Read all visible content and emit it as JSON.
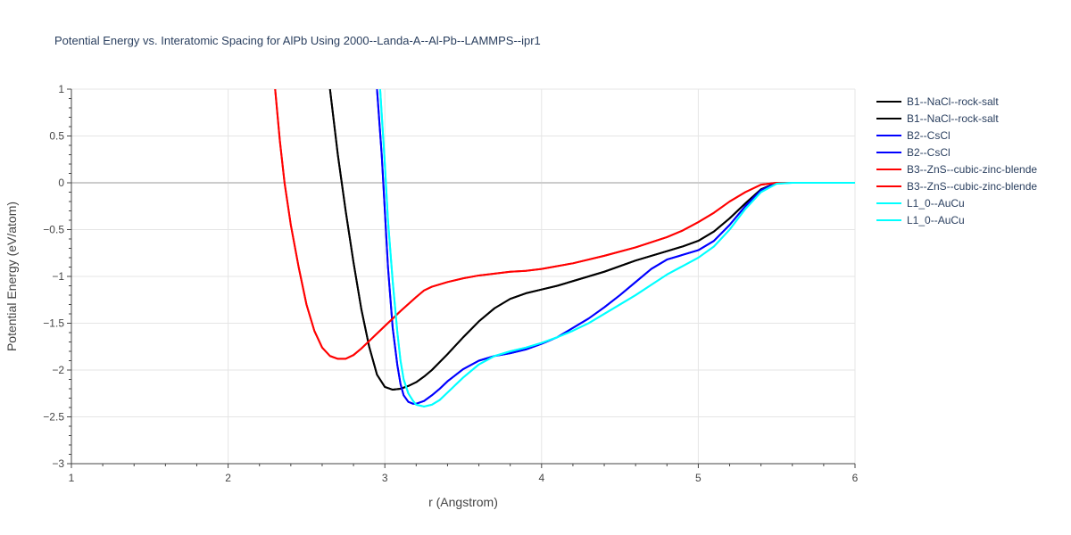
{
  "chart_data": {
    "type": "line",
    "title": "Potential Energy vs. Interatomic Spacing for AlPb Using 2000--Landa-A--Al-Pb--LAMMPS--ipr1",
    "xlabel": "r (Angstrom)",
    "ylabel": "Potential Energy (eV/atom)",
    "xlim": [
      1,
      6
    ],
    "ylim": [
      -3,
      1
    ],
    "xticks": [
      1,
      2,
      3,
      4,
      5,
      6
    ],
    "yticks": [
      1,
      0.5,
      0,
      -0.5,
      -1,
      -1.5,
      -2,
      -2.5,
      -3
    ],
    "xtick_labels": [
      "1",
      "2",
      "3",
      "4",
      "5",
      "6"
    ],
    "ytick_labels": [
      "1",
      "0.5",
      "0",
      "−0.5",
      "−1",
      "−1.5",
      "−2",
      "−2.5",
      "−3"
    ],
    "grid": true,
    "legend_position": "top-right",
    "series": [
      {
        "name": "B1--NaCl--rock-salt",
        "color": "#000000",
        "x": [
          2.65,
          2.7,
          2.75,
          2.8,
          2.85,
          2.9,
          2.95,
          3.0,
          3.05,
          3.1,
          3.15,
          3.2,
          3.25,
          3.3,
          3.4,
          3.5,
          3.6,
          3.7,
          3.8,
          3.9,
          4.0,
          4.1,
          4.2,
          4.4,
          4.6,
          4.8,
          4.9,
          5.0,
          5.1,
          5.2,
          5.3,
          5.4,
          5.5,
          5.6,
          6.0
        ],
        "y": [
          1.0,
          0.3,
          -0.3,
          -0.85,
          -1.35,
          -1.75,
          -2.05,
          -2.18,
          -2.21,
          -2.2,
          -2.17,
          -2.13,
          -2.07,
          -2.0,
          -1.83,
          -1.65,
          -1.48,
          -1.34,
          -1.24,
          -1.18,
          -1.14,
          -1.1,
          -1.05,
          -0.95,
          -0.83,
          -0.73,
          -0.68,
          -0.62,
          -0.52,
          -0.38,
          -0.22,
          -0.07,
          0.0,
          0.0,
          0.0
        ]
      },
      {
        "name": "B1--NaCl--rock-salt",
        "color": "#000000",
        "x": [
          2.65,
          2.7,
          2.75,
          2.8,
          2.85,
          2.9,
          2.95,
          3.0,
          3.05,
          3.1,
          3.15,
          3.2,
          3.25,
          3.3,
          3.4,
          3.5,
          3.6,
          3.7,
          3.8,
          3.9,
          4.0,
          4.1,
          4.2,
          4.4,
          4.6,
          4.8,
          4.9,
          5.0,
          5.1,
          5.2,
          5.3,
          5.4,
          5.5,
          5.6,
          6.0
        ],
        "y": [
          1.0,
          0.3,
          -0.3,
          -0.85,
          -1.35,
          -1.75,
          -2.05,
          -2.18,
          -2.21,
          -2.2,
          -2.17,
          -2.13,
          -2.07,
          -2.0,
          -1.83,
          -1.65,
          -1.48,
          -1.34,
          -1.24,
          -1.18,
          -1.14,
          -1.1,
          -1.05,
          -0.95,
          -0.83,
          -0.73,
          -0.68,
          -0.62,
          -0.52,
          -0.38,
          -0.22,
          -0.07,
          0.0,
          0.0,
          0.0
        ]
      },
      {
        "name": "B2--CsCl",
        "color": "#0000ff",
        "x": [
          2.95,
          2.98,
          3.0,
          3.02,
          3.05,
          3.08,
          3.1,
          3.12,
          3.15,
          3.18,
          3.2,
          3.25,
          3.3,
          3.35,
          3.4,
          3.5,
          3.6,
          3.7,
          3.8,
          3.9,
          4.0,
          4.1,
          4.2,
          4.3,
          4.4,
          4.5,
          4.6,
          4.7,
          4.8,
          4.9,
          5.0,
          5.1,
          5.2,
          5.3,
          5.4,
          5.5,
          5.6,
          6.0
        ],
        "y": [
          1.0,
          0.3,
          -0.3,
          -0.9,
          -1.55,
          -1.95,
          -2.15,
          -2.27,
          -2.34,
          -2.36,
          -2.36,
          -2.33,
          -2.27,
          -2.2,
          -2.12,
          -1.99,
          -1.9,
          -1.85,
          -1.82,
          -1.78,
          -1.72,
          -1.65,
          -1.55,
          -1.45,
          -1.33,
          -1.2,
          -1.06,
          -0.92,
          -0.82,
          -0.77,
          -0.72,
          -0.62,
          -0.45,
          -0.25,
          -0.08,
          0.0,
          0.0,
          0.0
        ]
      },
      {
        "name": "B2--CsCl",
        "color": "#0000ff",
        "x": [
          2.95,
          2.98,
          3.0,
          3.02,
          3.05,
          3.08,
          3.1,
          3.12,
          3.15,
          3.18,
          3.2,
          3.25,
          3.3,
          3.35,
          3.4,
          3.5,
          3.6,
          3.7,
          3.8,
          3.9,
          4.0,
          4.1,
          4.2,
          4.3,
          4.4,
          4.5,
          4.6,
          4.7,
          4.8,
          4.9,
          5.0,
          5.1,
          5.2,
          5.3,
          5.4,
          5.5,
          5.6,
          6.0
        ],
        "y": [
          1.0,
          0.3,
          -0.3,
          -0.9,
          -1.55,
          -1.95,
          -2.15,
          -2.27,
          -2.34,
          -2.36,
          -2.36,
          -2.33,
          -2.27,
          -2.2,
          -2.12,
          -1.99,
          -1.9,
          -1.85,
          -1.82,
          -1.78,
          -1.72,
          -1.65,
          -1.55,
          -1.45,
          -1.33,
          -1.2,
          -1.06,
          -0.92,
          -0.82,
          -0.77,
          -0.72,
          -0.62,
          -0.45,
          -0.25,
          -0.08,
          0.0,
          0.0,
          0.0
        ]
      },
      {
        "name": "B3--ZnS--cubic-zinc-blende",
        "color": "#ff0000",
        "x": [
          2.3,
          2.33,
          2.36,
          2.4,
          2.45,
          2.5,
          2.55,
          2.6,
          2.65,
          2.7,
          2.75,
          2.8,
          2.85,
          2.9,
          3.0,
          3.1,
          3.2,
          3.25,
          3.3,
          3.4,
          3.5,
          3.6,
          3.7,
          3.8,
          3.9,
          4.0,
          4.2,
          4.4,
          4.6,
          4.8,
          4.9,
          5.0,
          5.1,
          5.2,
          5.3,
          5.4,
          5.5,
          5.6,
          6.0
        ],
        "y": [
          1.0,
          0.45,
          0.0,
          -0.45,
          -0.9,
          -1.3,
          -1.58,
          -1.76,
          -1.85,
          -1.88,
          -1.88,
          -1.84,
          -1.77,
          -1.69,
          -1.53,
          -1.37,
          -1.22,
          -1.15,
          -1.11,
          -1.06,
          -1.02,
          -0.99,
          -0.97,
          -0.95,
          -0.94,
          -0.92,
          -0.86,
          -0.78,
          -0.69,
          -0.58,
          -0.51,
          -0.42,
          -0.32,
          -0.2,
          -0.1,
          -0.02,
          0.0,
          0.0,
          0.0
        ]
      },
      {
        "name": "B3--ZnS--cubic-zinc-blende",
        "color": "#ff0000",
        "x": [
          2.3,
          2.33,
          2.36,
          2.4,
          2.45,
          2.5,
          2.55,
          2.6,
          2.65,
          2.7,
          2.75,
          2.8,
          2.85,
          2.9,
          3.0,
          3.1,
          3.2,
          3.25,
          3.3,
          3.4,
          3.5,
          3.6,
          3.7,
          3.8,
          3.9,
          4.0,
          4.2,
          4.4,
          4.6,
          4.8,
          4.9,
          5.0,
          5.1,
          5.2,
          5.3,
          5.4,
          5.5,
          5.6,
          6.0
        ],
        "y": [
          1.0,
          0.45,
          0.0,
          -0.45,
          -0.9,
          -1.3,
          -1.58,
          -1.76,
          -1.85,
          -1.88,
          -1.88,
          -1.84,
          -1.77,
          -1.69,
          -1.53,
          -1.37,
          -1.22,
          -1.15,
          -1.11,
          -1.06,
          -1.02,
          -0.99,
          -0.97,
          -0.95,
          -0.94,
          -0.92,
          -0.86,
          -0.78,
          -0.69,
          -0.58,
          -0.51,
          -0.42,
          -0.32,
          -0.2,
          -0.1,
          -0.02,
          0.0,
          0.0,
          0.0
        ]
      },
      {
        "name": "L1_0--AuCu",
        "color": "#00ffff",
        "x": [
          2.97,
          3.0,
          3.02,
          3.05,
          3.08,
          3.1,
          3.12,
          3.15,
          3.18,
          3.2,
          3.25,
          3.3,
          3.35,
          3.4,
          3.5,
          3.6,
          3.7,
          3.8,
          3.9,
          4.0,
          4.1,
          4.2,
          4.3,
          4.4,
          4.5,
          4.6,
          4.7,
          4.8,
          4.9,
          5.0,
          5.1,
          5.2,
          5.3,
          5.4,
          5.5,
          5.6,
          6.0
        ],
        "y": [
          1.0,
          0.2,
          -0.4,
          -1.05,
          -1.6,
          -1.9,
          -2.1,
          -2.25,
          -2.33,
          -2.37,
          -2.39,
          -2.37,
          -2.32,
          -2.24,
          -2.08,
          -1.94,
          -1.85,
          -1.8,
          -1.76,
          -1.71,
          -1.65,
          -1.58,
          -1.5,
          -1.4,
          -1.3,
          -1.2,
          -1.09,
          -0.98,
          -0.89,
          -0.8,
          -0.68,
          -0.5,
          -0.28,
          -0.1,
          -0.01,
          0.0,
          0.0
        ]
      },
      {
        "name": "L1_0--AuCu",
        "color": "#00ffff",
        "x": [
          2.97,
          3.0,
          3.02,
          3.05,
          3.08,
          3.1,
          3.12,
          3.15,
          3.18,
          3.2,
          3.25,
          3.3,
          3.35,
          3.4,
          3.5,
          3.6,
          3.7,
          3.8,
          3.9,
          4.0,
          4.1,
          4.2,
          4.3,
          4.4,
          4.5,
          4.6,
          4.7,
          4.8,
          4.9,
          5.0,
          5.1,
          5.2,
          5.3,
          5.4,
          5.5,
          5.6,
          6.0
        ],
        "y": [
          1.0,
          0.2,
          -0.4,
          -1.05,
          -1.6,
          -1.9,
          -2.1,
          -2.25,
          -2.33,
          -2.37,
          -2.39,
          -2.37,
          -2.32,
          -2.24,
          -2.08,
          -1.94,
          -1.85,
          -1.8,
          -1.76,
          -1.71,
          -1.65,
          -1.58,
          -1.5,
          -1.4,
          -1.3,
          -1.2,
          -1.09,
          -0.98,
          -0.89,
          -0.8,
          -0.68,
          -0.5,
          -0.28,
          -0.1,
          -0.01,
          0.0,
          0.0
        ]
      }
    ]
  }
}
